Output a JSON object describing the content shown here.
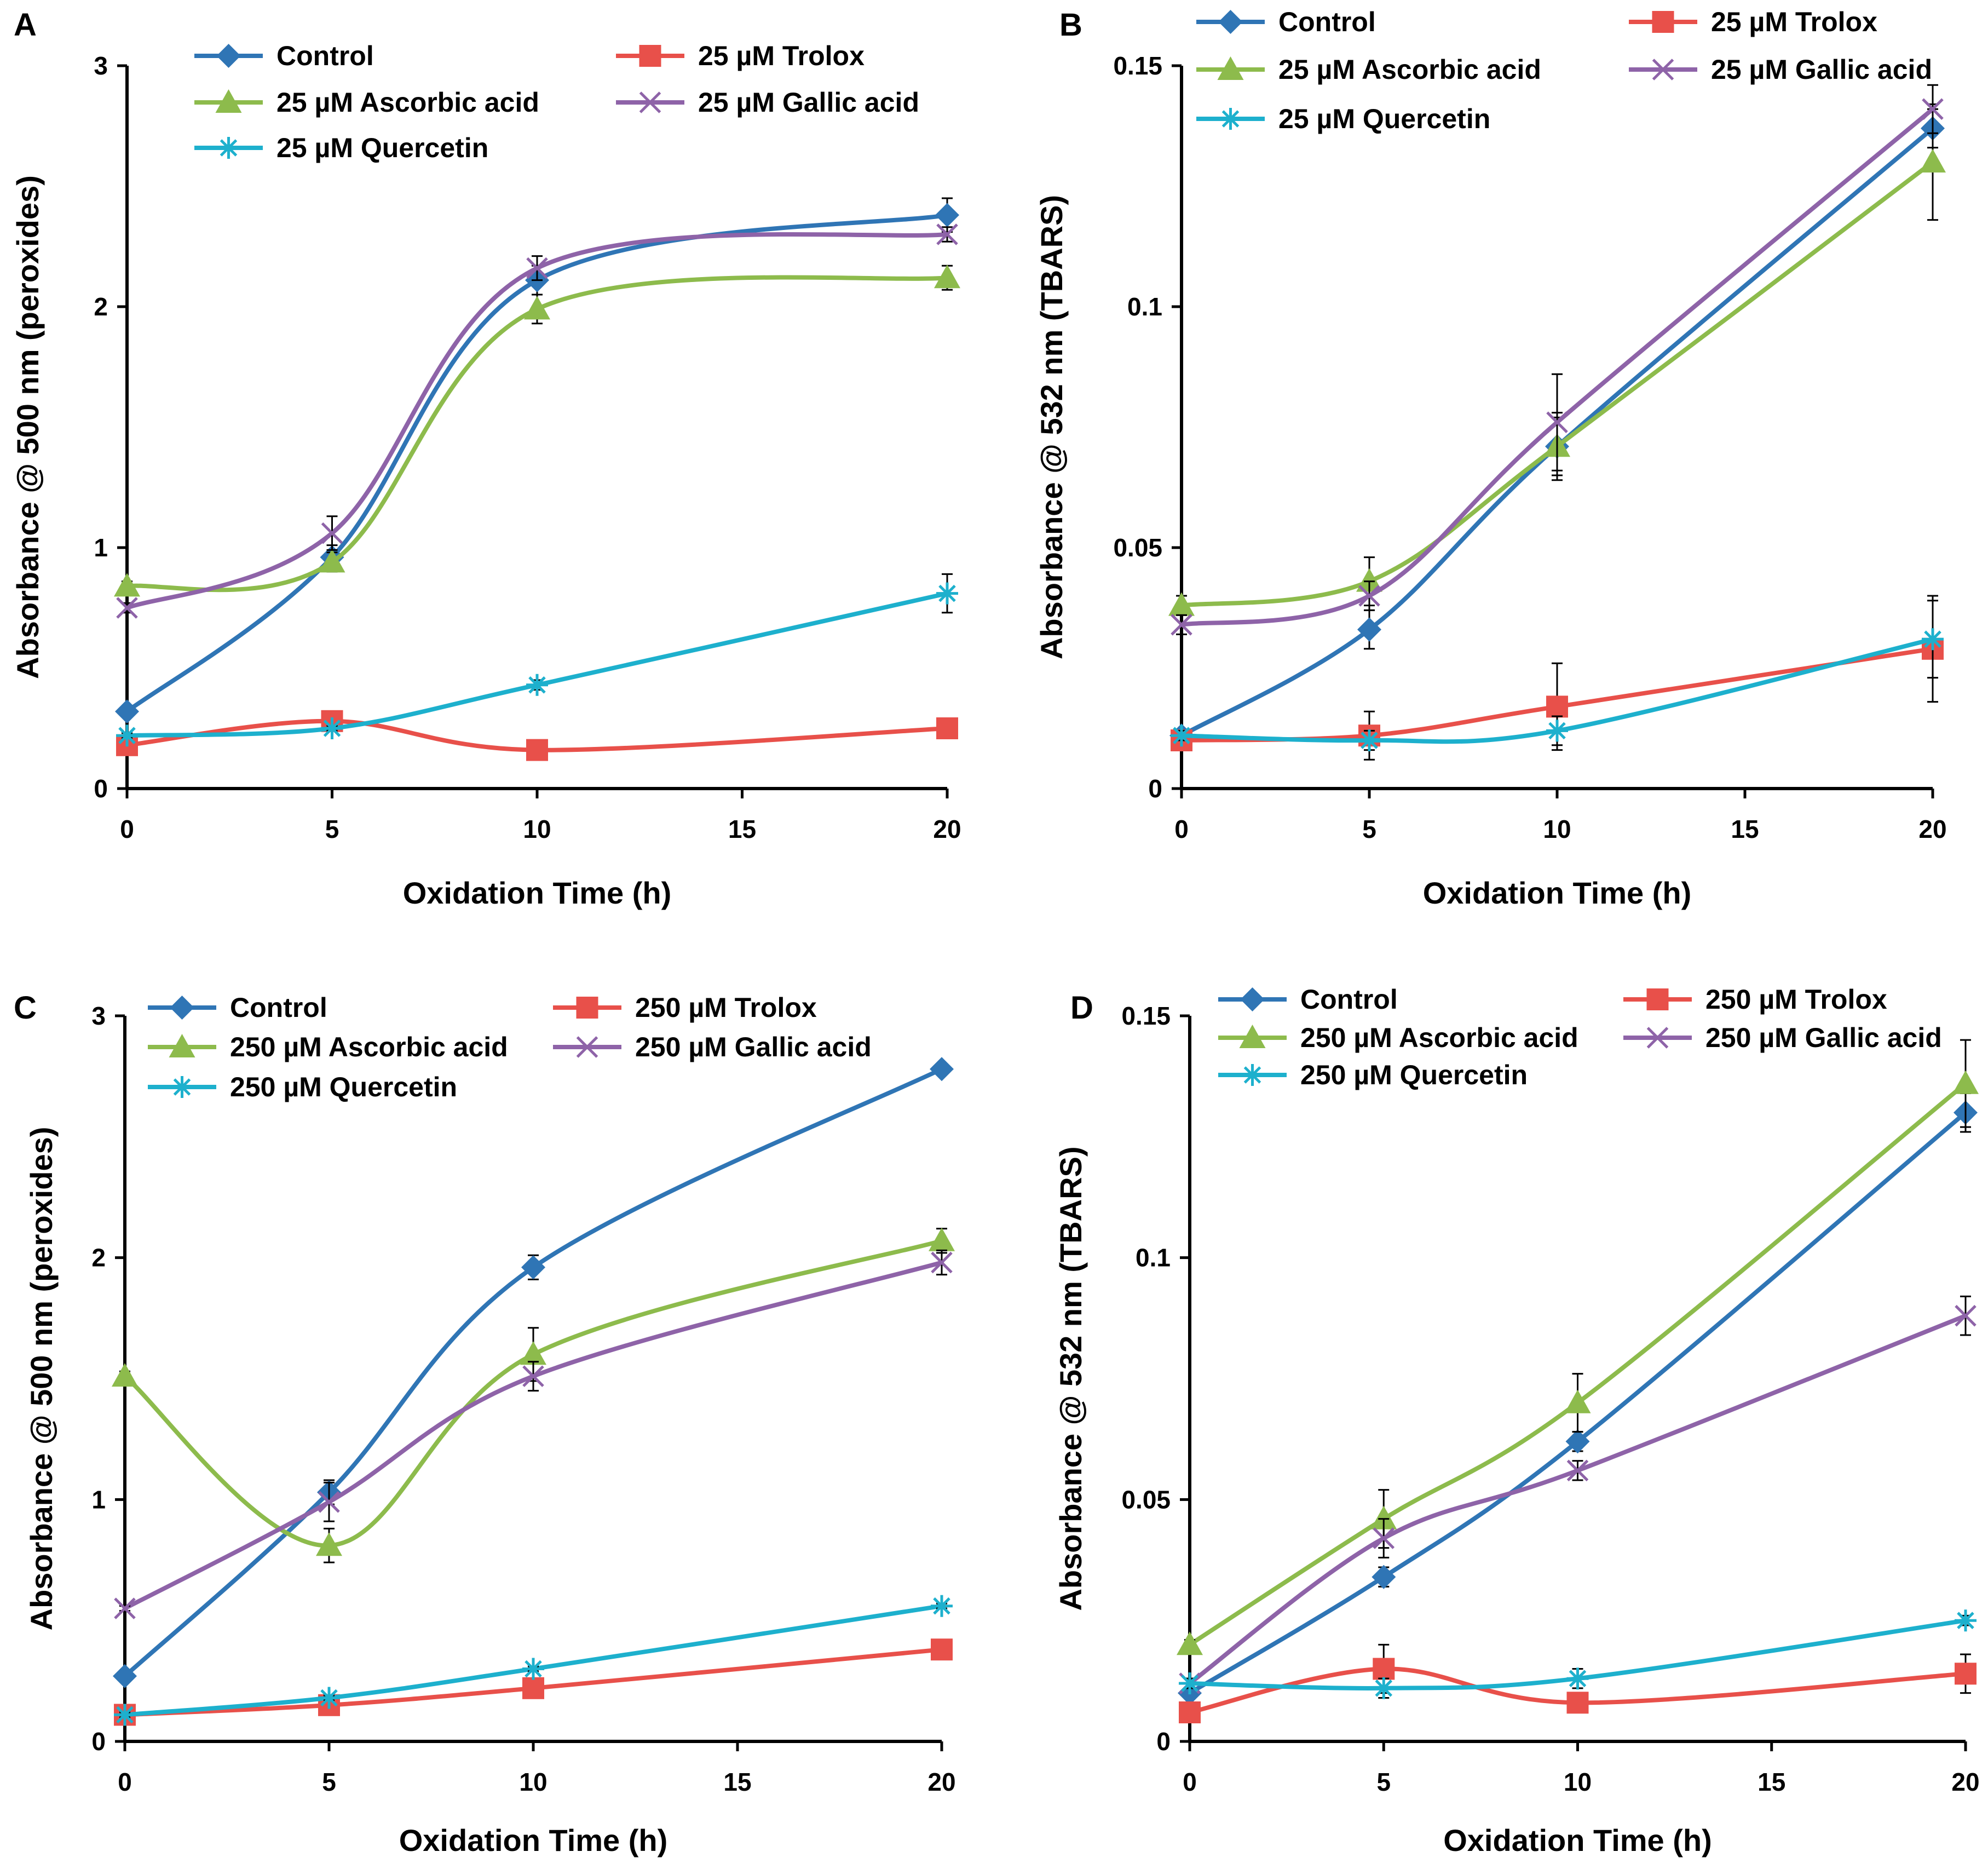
{
  "colors": {
    "control": "#2F75B5",
    "trolox": "#E8504A",
    "ascorbic": "#8DBB4C",
    "gallic": "#8E63A8",
    "quercetin": "#1DB0CD"
  },
  "chart_data": [
    {
      "panel": "A",
      "type": "line",
      "xlabel": "Oxidation Time (h)",
      "ylabel": "Absorbance  @ 500 nm (peroxides)",
      "xlim": [
        0,
        20
      ],
      "ylim": [
        0,
        3
      ],
      "xticks": [
        0,
        5,
        10,
        15,
        20
      ],
      "yticks": [
        0,
        1,
        2,
        3
      ],
      "ytick_labels": [
        "0",
        "1",
        "2",
        "3"
      ],
      "x": [
        0,
        5,
        10,
        20
      ],
      "series": [
        {
          "key": "control",
          "name": "Control",
          "marker": "diamond",
          "values": [
            0.32,
            0.96,
            2.11,
            2.38
          ],
          "errors": [
            0.02,
            0.05,
            0.06,
            0.07
          ]
        },
        {
          "key": "trolox",
          "name": "25 µM Trolox",
          "marker": "square",
          "values": [
            0.18,
            0.28,
            0.16,
            0.25
          ],
          "errors": [
            0.01,
            0.02,
            0.01,
            0.01
          ]
        },
        {
          "key": "ascorbic",
          "name": "25 µM Ascorbic acid",
          "marker": "triangle",
          "values": [
            0.84,
            0.94,
            1.99,
            2.12
          ],
          "errors": [
            0.02,
            0.04,
            0.06,
            0.05
          ]
        },
        {
          "key": "gallic",
          "name": "25 µM Gallic acid",
          "marker": "x",
          "values": [
            0.75,
            1.06,
            2.16,
            2.3
          ],
          "errors": [
            0.02,
            0.07,
            0.05,
            0.03
          ]
        },
        {
          "key": "quercetin",
          "name": "25 µM Quercetin",
          "marker": "star",
          "values": [
            0.22,
            0.25,
            0.43,
            0.81
          ],
          "errors": [
            0.01,
            0.01,
            0.02,
            0.08
          ]
        }
      ]
    },
    {
      "panel": "B",
      "type": "line",
      "xlabel": "Oxidation Time (h)",
      "ylabel": "Absorbance @ 532 nm (TBARS)",
      "xlim": [
        0,
        20
      ],
      "ylim": [
        0,
        0.15
      ],
      "xticks": [
        0,
        5,
        10,
        15,
        20
      ],
      "yticks": [
        0,
        0.05,
        0.1,
        0.15
      ],
      "ytick_labels": [
        "0",
        "0.05",
        "0.1",
        "0.15"
      ],
      "x": [
        0,
        5,
        10,
        20
      ],
      "series": [
        {
          "key": "control",
          "name": "Control",
          "marker": "diamond",
          "values": [
            0.011,
            0.033,
            0.071,
            0.137
          ],
          "errors": [
            0.001,
            0.004,
            0.007,
            0.004
          ]
        },
        {
          "key": "trolox",
          "name": "25 µM Trolox",
          "marker": "square",
          "values": [
            0.01,
            0.011,
            0.017,
            0.029
          ],
          "errors": [
            0.001,
            0.005,
            0.009,
            0.011
          ]
        },
        {
          "key": "ascorbic",
          "name": "25 µM Ascorbic acid",
          "marker": "triangle",
          "values": [
            0.038,
            0.043,
            0.071,
            0.13
          ],
          "errors": [
            0.002,
            0.005,
            0.006,
            0.012
          ]
        },
        {
          "key": "gallic",
          "name": "25 µM Gallic acid",
          "marker": "x",
          "values": [
            0.034,
            0.04,
            0.076,
            0.141
          ],
          "errors": [
            0.002,
            0.003,
            0.01,
            0.005
          ]
        },
        {
          "key": "quercetin",
          "name": "25 µM Quercetin",
          "marker": "star",
          "values": [
            0.011,
            0.01,
            0.012,
            0.031
          ],
          "errors": [
            0.001,
            0.002,
            0.003,
            0.008
          ]
        }
      ]
    },
    {
      "panel": "C",
      "type": "line",
      "xlabel": "Oxidation Time (h)",
      "ylabel": "Absorbance @ 500 nm (peroxides)",
      "xlim": [
        0,
        20
      ],
      "ylim": [
        0,
        3
      ],
      "xticks": [
        0,
        5,
        10,
        15,
        20
      ],
      "yticks": [
        0,
        1,
        2,
        3
      ],
      "ytick_labels": [
        "0",
        "1",
        "2",
        "3"
      ],
      "x": [
        0,
        5,
        10,
        20
      ],
      "series": [
        {
          "key": "control",
          "name": "Control",
          "marker": "diamond",
          "values": [
            0.27,
            1.03,
            1.96,
            2.78
          ],
          "errors": [
            0.02,
            0.05,
            0.05,
            0.02
          ]
        },
        {
          "key": "trolox",
          "name": "250 µM Trolox",
          "marker": "square",
          "values": [
            0.11,
            0.15,
            0.22,
            0.38
          ],
          "errors": [
            0.01,
            0.01,
            0.01,
            0.01
          ]
        },
        {
          "key": "ascorbic",
          "name": "250 µM Ascorbic acid",
          "marker": "triangle",
          "values": [
            1.51,
            0.81,
            1.6,
            2.07
          ],
          "errors": [
            0.02,
            0.07,
            0.11,
            0.05
          ]
        },
        {
          "key": "gallic",
          "name": "250 µM Gallic acid",
          "marker": "x",
          "values": [
            0.55,
            0.99,
            1.51,
            1.98
          ],
          "errors": [
            0.01,
            0.08,
            0.06,
            0.05
          ]
        },
        {
          "key": "quercetin",
          "name": "250 µM Quercetin",
          "marker": "star",
          "values": [
            0.11,
            0.18,
            0.3,
            0.56
          ],
          "errors": [
            0.01,
            0.01,
            0.01,
            0.01
          ]
        }
      ]
    },
    {
      "panel": "D",
      "type": "line",
      "xlabel": "Oxidation Time (h)",
      "ylabel": "Absorbance @ 532 nm (TBARS)",
      "xlim": [
        0,
        20
      ],
      "ylim": [
        0,
        0.15
      ],
      "xticks": [
        0,
        5,
        10,
        15,
        20
      ],
      "yticks": [
        0,
        0.05,
        0.1,
        0.15
      ],
      "ytick_labels": [
        "0",
        "0.05",
        "0.1",
        "0.15"
      ],
      "x": [
        0,
        5,
        10,
        20
      ],
      "series": [
        {
          "key": "control",
          "name": "Control",
          "marker": "diamond",
          "values": [
            0.01,
            0.034,
            0.062,
            0.13
          ],
          "errors": [
            0.001,
            0.002,
            0.002,
            0.004
          ]
        },
        {
          "key": "trolox",
          "name": "250 µM Trolox",
          "marker": "square",
          "values": [
            0.006,
            0.015,
            0.008,
            0.014
          ],
          "errors": [
            0.001,
            0.005,
            0.001,
            0.004
          ]
        },
        {
          "key": "ascorbic",
          "name": "250 µM Ascorbic acid",
          "marker": "triangle",
          "values": [
            0.02,
            0.046,
            0.07,
            0.136
          ],
          "errors": [
            0.001,
            0.006,
            0.006,
            0.009
          ]
        },
        {
          "key": "gallic",
          "name": "250 µM Gallic acid",
          "marker": "x",
          "values": [
            0.012,
            0.042,
            0.056,
            0.088
          ],
          "errors": [
            0.001,
            0.004,
            0.002,
            0.004
          ]
        },
        {
          "key": "quercetin",
          "name": "250 µM Quercetin",
          "marker": "star",
          "values": [
            0.012,
            0.011,
            0.013,
            0.025
          ],
          "errors": [
            0.001,
            0.002,
            0.002,
            0.001
          ]
        }
      ]
    }
  ]
}
